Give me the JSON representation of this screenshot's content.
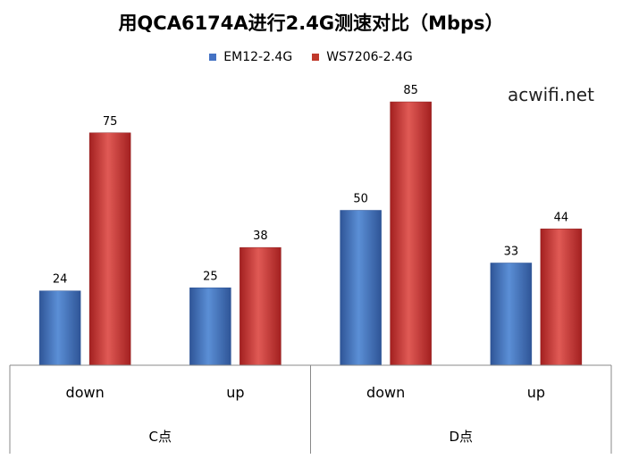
{
  "title": "用QCA6174A进行2.4G测速对比（Mbps）",
  "watermark": "acwifi.net",
  "colors": {
    "series1": "#4472c4",
    "series2": "#c0392b",
    "axis": "#888888"
  },
  "chart_data": {
    "type": "bar",
    "title": "用QCA6174A进行2.4G测速对比（Mbps）",
    "groups": [
      {
        "label": "C点",
        "categories": [
          "down",
          "up"
        ]
      },
      {
        "label": "D点",
        "categories": [
          "down",
          "up"
        ]
      }
    ],
    "categories": [
      "down",
      "up",
      "down",
      "up"
    ],
    "series": [
      {
        "name": "EM12-2.4G",
        "values": [
          24,
          25,
          50,
          33
        ]
      },
      {
        "name": "WS7206-2.4G",
        "values": [
          75,
          38,
          85,
          44
        ]
      }
    ],
    "ylim": [
      0,
      90
    ],
    "grid": false,
    "legend": "top"
  }
}
